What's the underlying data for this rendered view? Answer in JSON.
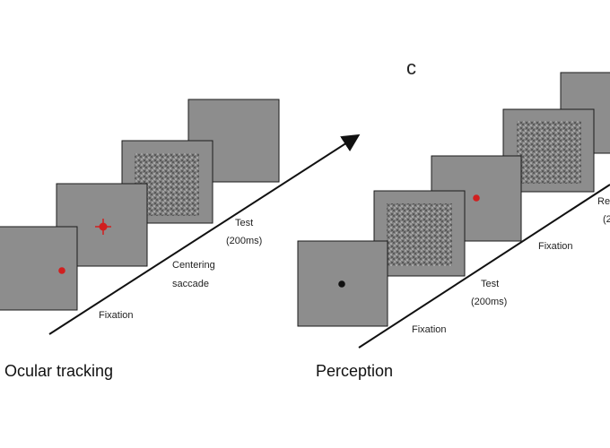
{
  "panel_letter": "c",
  "ocular": {
    "caption": "Ocular tracking",
    "labels": {
      "fixation": "Fixation",
      "centering_line1": "Centering",
      "centering_line2": "saccade",
      "test_line1": "Test",
      "test_line2": "(200ms)"
    }
  },
  "perception": {
    "caption": "Perception",
    "labels": {
      "fixation1": "Fixation",
      "test_line1": "Test",
      "test_line2": "(200ms)",
      "fixation2": "Fixation",
      "clipped_line1": "Re",
      "clipped_line2": "(2"
    }
  },
  "colors": {
    "screen_fill": "#8d8d8d",
    "screen_stroke": "#1a1a1a",
    "red_dot": "#d11f1f",
    "black_dot": "#111111",
    "axis_line": "#111111"
  }
}
